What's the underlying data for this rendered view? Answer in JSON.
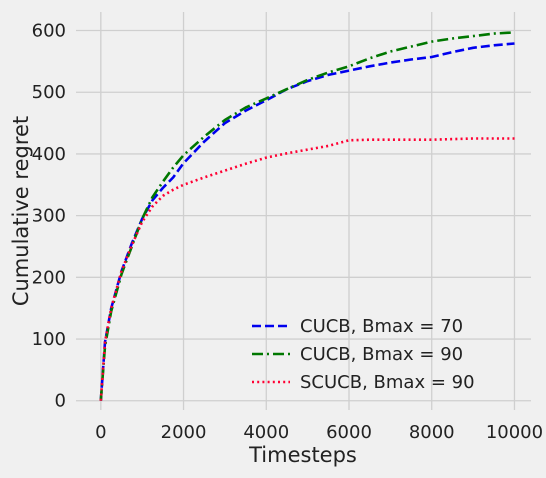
{
  "chart_data": {
    "type": "line",
    "xlabel": "Timesteps",
    "ylabel": "Cumulative regret",
    "xlim": [
      -600,
      10400
    ],
    "ylim": [
      -15,
      630
    ],
    "xticks": [
      0,
      2000,
      4000,
      6000,
      8000,
      10000
    ],
    "xtick_labels": [
      "0",
      "2000",
      "4000",
      "6000",
      "8000",
      "10000"
    ],
    "yticks": [
      0,
      100,
      200,
      300,
      400,
      500,
      600
    ],
    "ytick_labels": [
      "0",
      "100",
      "200",
      "300",
      "400",
      "500",
      "600"
    ],
    "grid": true,
    "legend_position": "lower-right",
    "series": [
      {
        "name": "CUCB, Bmax = 70",
        "color": "#0000ee",
        "dash": "dashed",
        "x": [
          0,
          100,
          250,
          500,
          750,
          1000,
          1250,
          1500,
          1750,
          2000,
          2500,
          3000,
          3500,
          4000,
          4500,
          5000,
          5500,
          6000,
          6500,
          7000,
          7500,
          8000,
          8500,
          9000,
          9500,
          10000
        ],
        "y": [
          0,
          95,
          150,
          210,
          255,
          295,
          325,
          345,
          362,
          385,
          420,
          450,
          470,
          487,
          505,
          518,
          528,
          535,
          542,
          548,
          553,
          557,
          565,
          572,
          576,
          579
        ]
      },
      {
        "name": "CUCB, Bmax = 90",
        "color": "#007700",
        "dash": "dashdot",
        "x": [
          0,
          100,
          250,
          500,
          750,
          1000,
          1250,
          1500,
          1750,
          2000,
          2500,
          3000,
          3500,
          4000,
          4500,
          5000,
          5500,
          6000,
          6500,
          7000,
          7500,
          8000,
          8500,
          9000,
          9500,
          10000
        ],
        "y": [
          0,
          88,
          145,
          205,
          250,
          295,
          330,
          355,
          378,
          398,
          428,
          455,
          475,
          490,
          505,
          520,
          532,
          542,
          555,
          566,
          574,
          582,
          587,
          591,
          595,
          597
        ]
      },
      {
        "name": "SCUCB, Bmax = 90",
        "color": "#ff0033",
        "dash": "dotted",
        "x": [
          0,
          100,
          250,
          500,
          750,
          1000,
          1250,
          1500,
          1750,
          2000,
          2500,
          3000,
          3500,
          4000,
          4500,
          5000,
          5500,
          6000,
          6500,
          7000,
          7500,
          8000,
          8500,
          9000,
          9500,
          10000
        ],
        "y": [
          0,
          95,
          150,
          210,
          252,
          290,
          315,
          332,
          342,
          350,
          362,
          373,
          384,
          394,
          401,
          407,
          413,
          422,
          423,
          423,
          423,
          423,
          424,
          425,
          425,
          425
        ]
      }
    ]
  }
}
